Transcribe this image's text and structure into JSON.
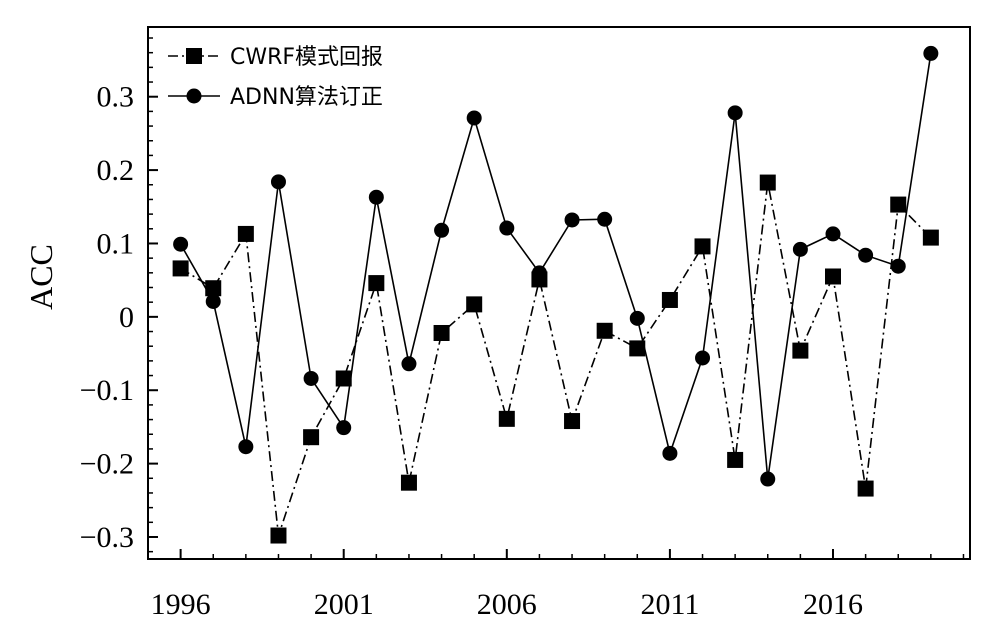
{
  "chart_data": {
    "type": "line",
    "title": "",
    "xlabel": "",
    "ylabel": "ACC",
    "xlim": [
      1995.0,
      2020.2
    ],
    "ylim": [
      -0.33,
      0.395
    ],
    "xticks": [
      1996,
      2001,
      2006,
      2011,
      2016
    ],
    "yticks": [
      {
        "value": 0.3,
        "label": "0.3"
      },
      {
        "value": 0.2,
        "label": "0.2"
      },
      {
        "value": 0.1,
        "label": "0.1"
      },
      {
        "value": 0,
        "label": "0"
      },
      {
        "value": -0.1,
        "label": "−0.1"
      },
      {
        "value": -0.2,
        "label": "−0.2"
      },
      {
        "value": -0.3,
        "label": "−0.3"
      }
    ],
    "grid": false,
    "legend_position": "top-left",
    "x": [
      1996,
      1997,
      1998,
      1999,
      2000,
      2001,
      2002,
      2003,
      2004,
      2005,
      2006,
      2007,
      2008,
      2009,
      2010,
      2011,
      2012,
      2013,
      2014,
      2015,
      2016,
      2017,
      2018,
      2019
    ],
    "series": [
      {
        "name": "CWRF模式回报",
        "marker": "square",
        "line": "dash-dot",
        "color": "#000000",
        "values": [
          0.066,
          0.039,
          0.113,
          -0.298,
          -0.164,
          -0.084,
          0.046,
          -0.226,
          -0.022,
          0.017,
          -0.139,
          0.051,
          -0.142,
          -0.019,
          -0.043,
          0.023,
          0.096,
          -0.195,
          0.183,
          -0.046,
          0.055,
          -0.234,
          0.153,
          0.108
        ]
      },
      {
        "name": "ADNN算法订正",
        "marker": "circle",
        "line": "solid",
        "color": "#000000",
        "values": [
          0.099,
          0.021,
          -0.177,
          0.184,
          -0.084,
          -0.151,
          0.163,
          -0.064,
          0.118,
          0.271,
          0.121,
          0.06,
          0.132,
          0.133,
          -0.002,
          -0.186,
          -0.056,
          0.278,
          -0.221,
          0.092,
          0.113,
          0.084,
          0.069,
          0.359
        ]
      }
    ]
  }
}
